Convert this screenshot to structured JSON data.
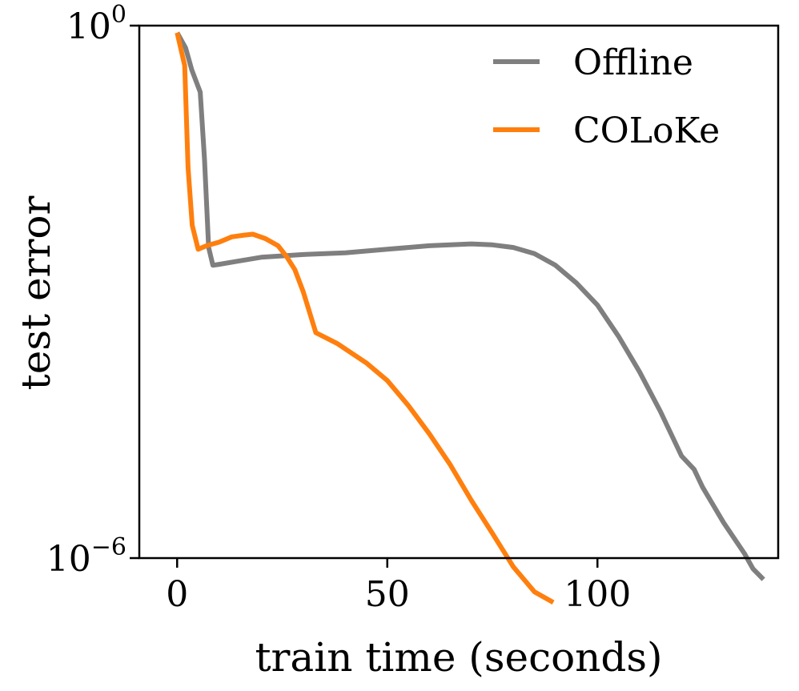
{
  "chart_data": {
    "type": "line",
    "title": "",
    "xlabel": "train time (seconds)",
    "ylabel": "test error",
    "xlim": [
      -9,
      143
    ],
    "ylim_exponent": [
      -6,
      0
    ],
    "y_scale": "log",
    "grid": false,
    "legend_position": "top-right",
    "x_ticks": [
      {
        "value": 0,
        "label": "0"
      },
      {
        "value": 50,
        "label": "50"
      },
      {
        "value": 100,
        "label": "100"
      }
    ],
    "y_ticks": [
      {
        "exponent": 0,
        "base": "10",
        "exp_label": "0"
      },
      {
        "exponent": -6,
        "base": "10",
        "exp_label": "−6"
      }
    ],
    "series": [
      {
        "name": "Offline",
        "color": "#7f7f7f",
        "points": [
          [
            0,
            -0.08
          ],
          [
            2,
            -0.25
          ],
          [
            3.5,
            -0.5
          ],
          [
            5.5,
            -0.75
          ],
          [
            6.5,
            -1.5
          ],
          [
            7.5,
            -2.5
          ],
          [
            8.5,
            -2.7
          ],
          [
            10,
            -2.69
          ],
          [
            15,
            -2.65
          ],
          [
            20,
            -2.61
          ],
          [
            30,
            -2.58
          ],
          [
            40,
            -2.56
          ],
          [
            50,
            -2.52
          ],
          [
            60,
            -2.48
          ],
          [
            70,
            -2.46
          ],
          [
            75,
            -2.47
          ],
          [
            80,
            -2.5
          ],
          [
            85,
            -2.57
          ],
          [
            90,
            -2.7
          ],
          [
            95,
            -2.9
          ],
          [
            100,
            -3.15
          ],
          [
            105,
            -3.5
          ],
          [
            110,
            -3.9
          ],
          [
            115,
            -4.35
          ],
          [
            120,
            -4.85
          ],
          [
            123,
            -5.0
          ],
          [
            125,
            -5.2
          ],
          [
            130,
            -5.6
          ],
          [
            135,
            -5.95
          ],
          [
            137,
            -6.12
          ],
          [
            139.5,
            -6.24
          ]
        ]
      },
      {
        "name": "COLoKe",
        "color": "#ff7f0e",
        "points": [
          [
            0,
            -0.08
          ],
          [
            1.8,
            -0.45
          ],
          [
            2.6,
            -1.6
          ],
          [
            3.6,
            -2.25
          ],
          [
            5,
            -2.52
          ],
          [
            7,
            -2.48
          ],
          [
            10,
            -2.44
          ],
          [
            13,
            -2.38
          ],
          [
            16,
            -2.36
          ],
          [
            18,
            -2.35
          ],
          [
            21,
            -2.4
          ],
          [
            24,
            -2.48
          ],
          [
            26,
            -2.6
          ],
          [
            28,
            -2.75
          ],
          [
            30,
            -3.0
          ],
          [
            33,
            -3.46
          ],
          [
            38,
            -3.58
          ],
          [
            45,
            -3.8
          ],
          [
            50,
            -4.0
          ],
          [
            55,
            -4.28
          ],
          [
            60,
            -4.6
          ],
          [
            65,
            -4.95
          ],
          [
            70,
            -5.35
          ],
          [
            75,
            -5.72
          ],
          [
            80,
            -6.1
          ],
          [
            85,
            -6.38
          ],
          [
            89.5,
            -6.5
          ]
        ]
      }
    ]
  }
}
